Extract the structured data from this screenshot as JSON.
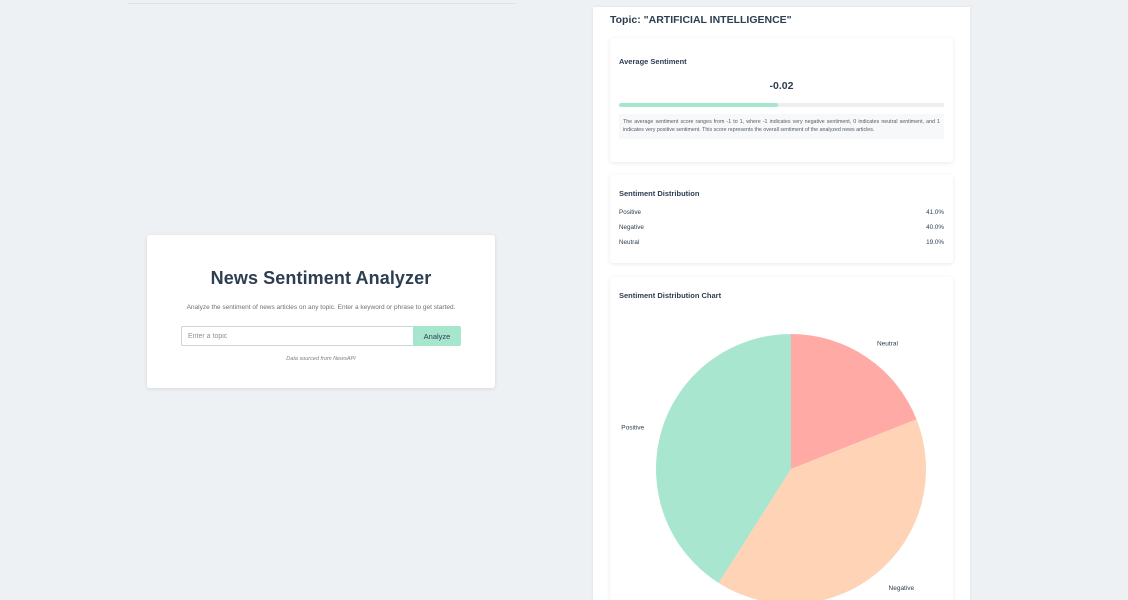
{
  "search_card": {
    "title": "News Sentiment Analyzer",
    "subtitle": "Analyze the sentiment of news articles on any topic. Enter a keyword or phrase to get started.",
    "input_placeholder": "Enter a topic",
    "input_value": "",
    "analyze_label": "Analyze",
    "source_note": "Data sourced from NewsAPI"
  },
  "results": {
    "topic_heading": "Topic: \"ARTIFICIAL INTELLIGENCE\"",
    "average": {
      "title": "Average Sentiment",
      "value": "-0.02",
      "bar_fraction": 0.49,
      "note": "The average sentiment score ranges from -1 to 1, where -1 indicates very negative sentiment, 0 indicates neutral sentiment, and 1 indicates very positive sentiment. This score represents the overall sentiment of the analyzed news articles."
    },
    "distribution": {
      "title": "Sentiment Distribution",
      "rows": [
        {
          "label": "Positive",
          "value": "41.0%"
        },
        {
          "label": "Negative",
          "value": "40.0%"
        },
        {
          "label": "Neutral",
          "value": "19.0%"
        }
      ]
    },
    "chart_title": "Sentiment Distribution Chart"
  },
  "colors": {
    "positive": "#a8e6cf",
    "negative": "#ffd3b6",
    "neutral": "#ffaaa5",
    "accent": "#a5e6cd"
  },
  "chart_data": {
    "type": "pie",
    "title": "Sentiment Distribution Chart",
    "categories": [
      "Neutral",
      "Negative",
      "Positive"
    ],
    "values": [
      19.0,
      40.0,
      41.0
    ],
    "start_angle_deg": 0,
    "direction": "clockwise",
    "colors": [
      "#ffaaa5",
      "#ffd3b6",
      "#a8e6cf"
    ]
  }
}
